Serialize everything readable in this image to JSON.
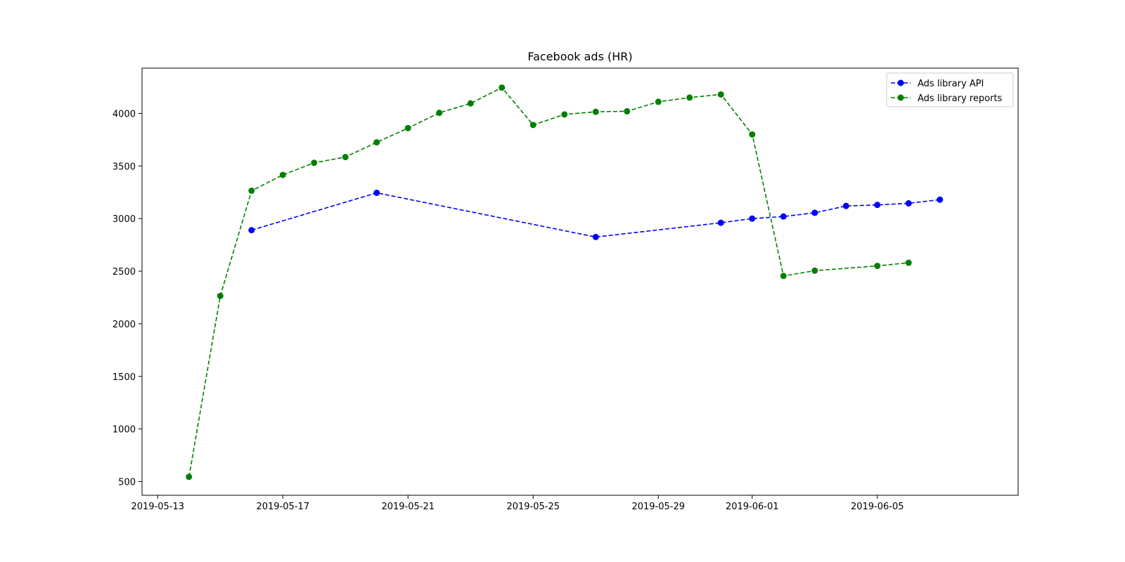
{
  "chart_data": {
    "type": "line",
    "title": "Facebook ads (HR)",
    "xlabel": "",
    "ylabel": "",
    "x_axis": {
      "type": "date",
      "range": [
        "2019-05-12T12:00",
        "2019-06-09T12:00"
      ],
      "ticks": [
        "2019-05-13",
        "2019-05-17",
        "2019-05-21",
        "2019-05-25",
        "2019-05-29",
        "2019-06-01",
        "2019-06-05"
      ]
    },
    "y_axis": {
      "range": [
        370,
        4430
      ],
      "ticks": [
        500,
        1000,
        1500,
        2000,
        2500,
        3000,
        3500,
        4000
      ]
    },
    "grid": false,
    "legend_position": "top-right",
    "series": [
      {
        "name": "Ads library API",
        "color": "#0000ff",
        "line_style": "dashed",
        "marker": "circle",
        "points": [
          [
            "2019-05-16",
            2890
          ],
          [
            "2019-05-20",
            3245
          ],
          [
            "2019-05-27",
            2825
          ],
          [
            "2019-05-31",
            2960
          ],
          [
            "2019-06-01",
            3000
          ],
          [
            "2019-06-02",
            3020
          ],
          [
            "2019-06-03",
            3055
          ],
          [
            "2019-06-04",
            3120
          ],
          [
            "2019-06-05",
            3130
          ],
          [
            "2019-06-06",
            3145
          ],
          [
            "2019-06-07",
            3180
          ]
        ]
      },
      {
        "name": "Ads library reports",
        "color": "#008000",
        "line_style": "dashed",
        "marker": "circle",
        "points": [
          [
            "2019-05-14",
            545
          ],
          [
            "2019-05-15",
            2265
          ],
          [
            "2019-05-16",
            3265
          ],
          [
            "2019-05-17",
            3415
          ],
          [
            "2019-05-18",
            3530
          ],
          [
            "2019-05-19",
            3585
          ],
          [
            "2019-05-20",
            3725
          ],
          [
            "2019-05-21",
            3860
          ],
          [
            "2019-05-22",
            4005
          ],
          [
            "2019-05-23",
            4095
          ],
          [
            "2019-05-24",
            4245
          ],
          [
            "2019-05-25",
            3890
          ],
          [
            "2019-05-26",
            3990
          ],
          [
            "2019-05-27",
            4015
          ],
          [
            "2019-05-28",
            4020
          ],
          [
            "2019-05-29",
            4110
          ],
          [
            "2019-05-30",
            4150
          ],
          [
            "2019-05-31",
            4180
          ],
          [
            "2019-06-01",
            3800
          ],
          [
            "2019-06-02",
            2455
          ],
          [
            "2019-06-03",
            2505
          ],
          [
            "2019-06-05",
            2550
          ],
          [
            "2019-06-06",
            2580
          ]
        ]
      }
    ]
  }
}
